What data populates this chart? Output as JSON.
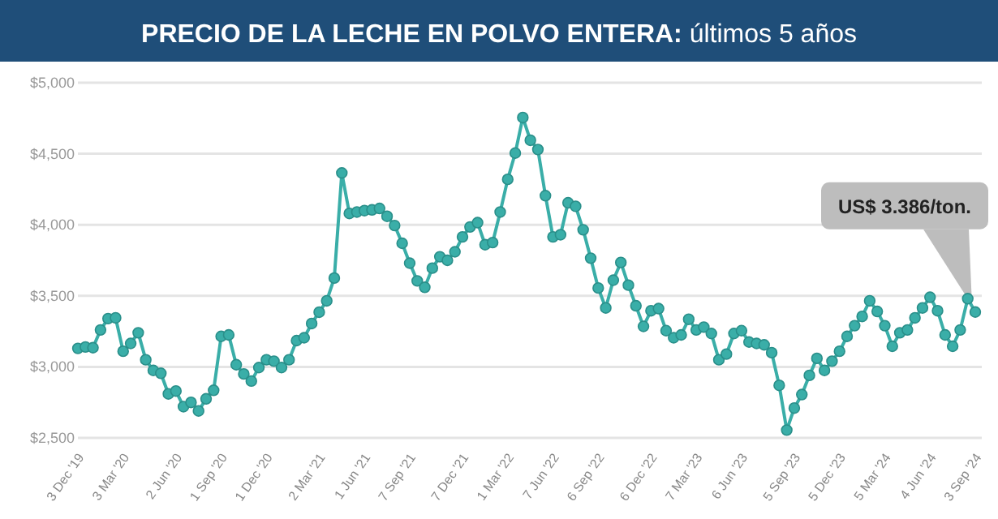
{
  "chart_data": {
    "type": "line",
    "title": "PRECIO DE LA LECHE EN POLVO ENTERA: últimos 5 años",
    "categories": [
      "3 Dec '19",
      null,
      null,
      null,
      null,
      null,
      "3 Mar '20",
      null,
      null,
      null,
      null,
      null,
      null,
      "2 Jun '20",
      null,
      null,
      null,
      null,
      null,
      "1 Sep '20",
      null,
      null,
      null,
      null,
      null,
      "1 Dec '20",
      null,
      null,
      null,
      null,
      null,
      null,
      "2 Mar '21",
      null,
      null,
      null,
      null,
      null,
      "1 Jun '21",
      null,
      null,
      null,
      null,
      null,
      "7 Sep '21",
      null,
      null,
      null,
      null,
      null,
      null,
      "7 Dec '21",
      null,
      null,
      null,
      null,
      null,
      "1 Mar '22",
      null,
      null,
      null,
      null,
      null,
      "7 Jun '22",
      null,
      null,
      null,
      null,
      null,
      "6 Sep '22",
      null,
      null,
      null,
      null,
      null,
      null,
      "6 Dec '22",
      null,
      null,
      null,
      null,
      null,
      "7 Mar '23",
      null,
      null,
      null,
      null,
      null,
      "6 Jun '23",
      null,
      null,
      null,
      null,
      null,
      null,
      "5 Sep '23",
      null,
      null,
      null,
      null,
      null,
      "5 Dec '23",
      null,
      null,
      null,
      null,
      null,
      "5 Mar '24",
      null,
      null,
      null,
      null,
      null,
      "4 Jun '24",
      null,
      null,
      null,
      null,
      null,
      "3 Sep '24"
    ],
    "series": [
      {
        "color": "#3aaea8",
        "values": [
          3130,
          3140,
          3135,
          3260,
          3340,
          3345,
          3110,
          3165,
          3240,
          3050,
          2975,
          2955,
          2810,
          2830,
          2720,
          2750,
          2690,
          2775,
          2835,
          3215,
          3225,
          3015,
          2950,
          2900,
          2995,
          3050,
          3040,
          2995,
          3050,
          3185,
          3205,
          3305,
          3385,
          3465,
          3625,
          4365,
          4080,
          4090,
          4100,
          4105,
          4115,
          4060,
          3995,
          3870,
          3730,
          3605,
          3560,
          3695,
          3775,
          3750,
          3810,
          3915,
          3985,
          4015,
          3860,
          3875,
          4090,
          4320,
          4505,
          4755,
          4595,
          4530,
          4205,
          3915,
          3930,
          4155,
          4130,
          3965,
          3765,
          3555,
          3415,
          3610,
          3735,
          3575,
          3430,
          3285,
          3395,
          3410,
          3255,
          3205,
          3225,
          3335,
          3260,
          3280,
          3235,
          3050,
          3090,
          3235,
          3255,
          3175,
          3165,
          3155,
          3100,
          2870,
          2555,
          2710,
          2805,
          2940,
          3060,
          2975,
          3040,
          3110,
          3215,
          3290,
          3355,
          3465,
          3390,
          3290,
          3145,
          3240,
          3260,
          3345,
          3415,
          3490,
          3395,
          3225,
          3145,
          3260,
          3480,
          3386
        ]
      }
    ],
    "ylim": [
      2500,
      5000
    ],
    "yticks": [
      {
        "value": 2500,
        "label": "$2,500"
      },
      {
        "value": 3000,
        "label": "$3,000"
      },
      {
        "value": 3500,
        "label": "$3,500"
      },
      {
        "value": 4000,
        "label": "$4,000"
      },
      {
        "value": 4500,
        "label": "$4,500"
      },
      {
        "value": 5000,
        "label": "$5,000"
      }
    ],
    "grid": "y",
    "marker": "circle",
    "line_style": "solid",
    "annotations": [
      "US$ 3.386/ton."
    ]
  }
}
